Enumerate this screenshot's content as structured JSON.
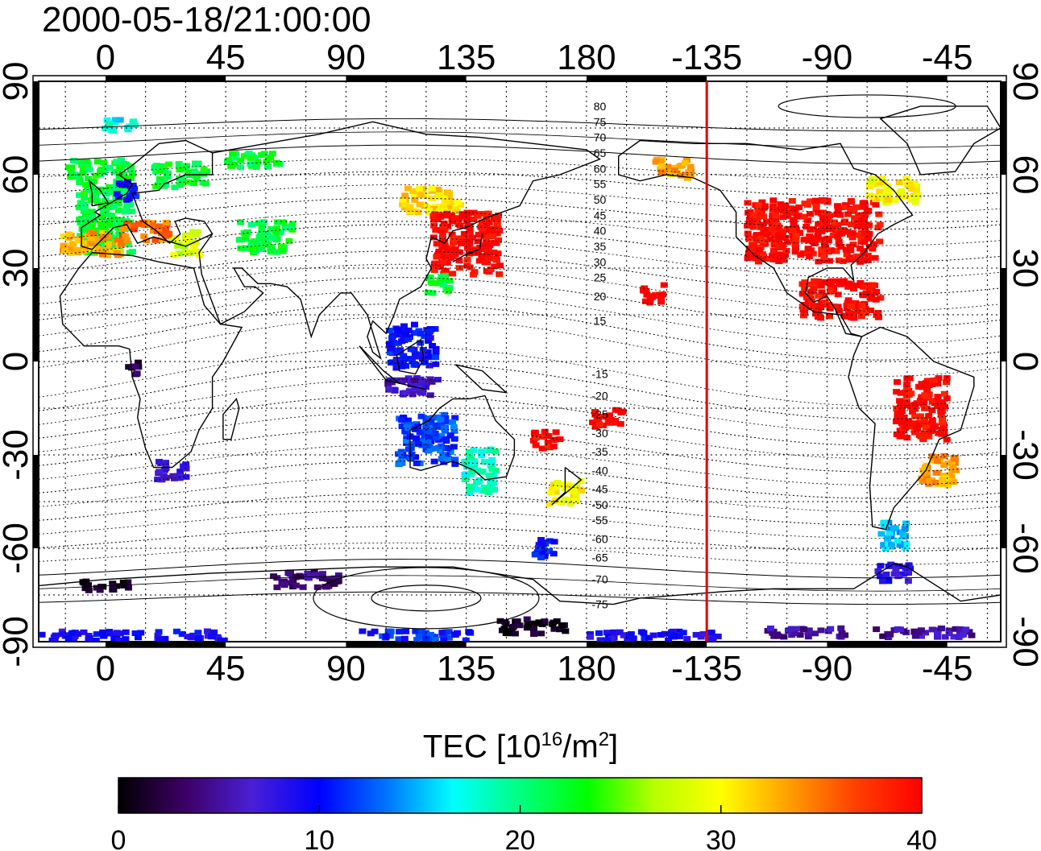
{
  "figure": {
    "timestamp": "2000-05-18/21:00:00",
    "colorbar": {
      "label_prefix": "TEC  [10",
      "label_exp1": "16",
      "label_mid": "/m",
      "label_exp2": "2",
      "label_suffix": "]",
      "ticks": [
        "0",
        "10",
        "20",
        "30",
        "40"
      ],
      "min": 0,
      "max": 40,
      "colors": [
        "#000000",
        "#3d0066",
        "#4a1fd6",
        "#0000ff",
        "#0073ff",
        "#00ffff",
        "#00ff80",
        "#00ff00",
        "#b6ff00",
        "#ffff00",
        "#ffa000",
        "#ff4000",
        "#ff0000"
      ]
    }
  },
  "chart_data": {
    "type": "heatmap",
    "map": "world",
    "title": "2000-05-18/21:00:00",
    "x_ticks_top": [
      "0",
      "45",
      "90",
      "135",
      "180",
      "-135",
      "-90",
      "-45"
    ],
    "x_ticks_bottom": [
      "0",
      "45",
      "90",
      "135",
      "180",
      "-135",
      "-90",
      "-45"
    ],
    "x_tick_lon": [
      0,
      45,
      90,
      135,
      180,
      225,
      270,
      315
    ],
    "y_ticks_left": [
      "90",
      "60",
      "30",
      "0",
      "-30",
      "-60",
      "-90"
    ],
    "y_ticks_right": [
      "90",
      "60",
      "30",
      "0",
      "-30",
      "-60",
      "-90"
    ],
    "y_tick_lat": [
      90,
      60,
      30,
      0,
      -30,
      -60,
      -90
    ],
    "xlim": [
      -25,
      335
    ],
    "ylim": [
      -90,
      90
    ],
    "contour_labels": [
      "80",
      "75",
      "70",
      "65",
      "60",
      "55",
      "50",
      "45",
      "40",
      "35",
      "30",
      "25",
      "20",
      "15",
      "-15",
      "-20",
      "-25",
      "-30",
      "-35",
      "-40",
      "-45",
      "-50",
      "-55",
      "-60",
      "-65",
      "-70",
      "-75"
    ],
    "contour_label_lat": [
      82,
      77,
      72,
      67,
      62,
      57,
      52,
      47,
      42,
      37,
      32,
      27,
      21,
      13,
      -4,
      -11,
      -17,
      -23,
      -29,
      -35,
      -41,
      -46,
      -51,
      -57,
      -63,
      -70,
      -78
    ],
    "terminator_lon": 225,
    "terminator_color": "#e00000",
    "tec_regions": [
      {
        "lon": 0,
        "lat": 50,
        "w": 20,
        "h": 30,
        "tec": 22
      },
      {
        "lon": -5,
        "lat": 38,
        "w": 22,
        "h": 8,
        "tec": 33
      },
      {
        "lon": 15,
        "lat": 42,
        "w": 18,
        "h": 6,
        "tec": 35
      },
      {
        "lon": -10,
        "lat": 62,
        "w": 8,
        "h": 6,
        "tec": 22
      },
      {
        "lon": 8,
        "lat": 55,
        "w": 8,
        "h": 6,
        "tec": 10
      },
      {
        "lon": 28,
        "lat": 60,
        "w": 20,
        "h": 8,
        "tec": 22
      },
      {
        "lon": 60,
        "lat": 40,
        "w": 20,
        "h": 10,
        "tec": 22
      },
      {
        "lon": 30,
        "lat": 38,
        "w": 10,
        "h": 8,
        "tec": 28
      },
      {
        "lon": 55,
        "lat": 65,
        "w": 20,
        "h": 5,
        "tec": 22
      },
      {
        "lon": 5,
        "lat": 76,
        "w": 12,
        "h": 4,
        "tec": 17
      },
      {
        "lon": 122,
        "lat": 52,
        "w": 22,
        "h": 8,
        "tec": 31
      },
      {
        "lon": 135,
        "lat": 38,
        "w": 25,
        "h": 20,
        "tec": 40
      },
      {
        "lon": 125,
        "lat": 25,
        "w": 10,
        "h": 6,
        "tec": 22
      },
      {
        "lon": 115,
        "lat": 5,
        "w": 18,
        "h": 14,
        "tec": 10
      },
      {
        "lon": 115,
        "lat": -8,
        "w": 20,
        "h": 6,
        "tec": 6
      },
      {
        "lon": 120,
        "lat": -25,
        "w": 22,
        "h": 16,
        "tec": 12
      },
      {
        "lon": 140,
        "lat": -35,
        "w": 12,
        "h": 14,
        "tec": 18
      },
      {
        "lon": 172,
        "lat": -42,
        "w": 12,
        "h": 8,
        "tec": 30
      },
      {
        "lon": 165,
        "lat": -25,
        "w": 10,
        "h": 6,
        "tec": 40
      },
      {
        "lon": 188,
        "lat": -18,
        "w": 12,
        "h": 6,
        "tec": 40
      },
      {
        "lon": 205,
        "lat": 22,
        "w": 8,
        "h": 6,
        "tec": 40
      },
      {
        "lon": 212,
        "lat": 62,
        "w": 14,
        "h": 6,
        "tec": 33
      },
      {
        "lon": 265,
        "lat": 42,
        "w": 50,
        "h": 20,
        "tec": 40
      },
      {
        "lon": 275,
        "lat": 20,
        "w": 30,
        "h": 12,
        "tec": 40
      },
      {
        "lon": 295,
        "lat": 55,
        "w": 20,
        "h": 8,
        "tec": 30
      },
      {
        "lon": 305,
        "lat": -15,
        "w": 20,
        "h": 20,
        "tec": 40
      },
      {
        "lon": 312,
        "lat": -35,
        "w": 14,
        "h": 10,
        "tec": 33
      },
      {
        "lon": 295,
        "lat": -55,
        "w": 10,
        "h": 10,
        "tec": 15
      },
      {
        "lon": 295,
        "lat": -68,
        "w": 12,
        "h": 6,
        "tec": 8
      },
      {
        "lon": 25,
        "lat": -35,
        "w": 12,
        "h": 6,
        "tec": 7
      },
      {
        "lon": 10,
        "lat": -2,
        "w": 6,
        "h": 4,
        "tec": 2
      },
      {
        "lon": 0,
        "lat": -72,
        "w": 20,
        "h": 3,
        "tec": 1
      },
      {
        "lon": 160,
        "lat": -85,
        "w": 25,
        "h": 5,
        "tec": 1
      },
      {
        "lon": 75,
        "lat": -70,
        "w": 25,
        "h": 5,
        "tec": 4
      },
      {
        "lon": 10,
        "lat": -88,
        "w": 70,
        "h": 3,
        "tec": 9
      },
      {
        "lon": 115,
        "lat": -88,
        "w": 45,
        "h": 3,
        "tec": 11
      },
      {
        "lon": 205,
        "lat": -88,
        "w": 50,
        "h": 3,
        "tec": 9
      },
      {
        "lon": 262,
        "lat": -87,
        "w": 30,
        "h": 3,
        "tec": 5
      },
      {
        "lon": 305,
        "lat": -87,
        "w": 40,
        "h": 3,
        "tec": 5
      },
      {
        "lon": 165,
        "lat": -60,
        "w": 10,
        "h": 6,
        "tec": 10
      }
    ]
  }
}
